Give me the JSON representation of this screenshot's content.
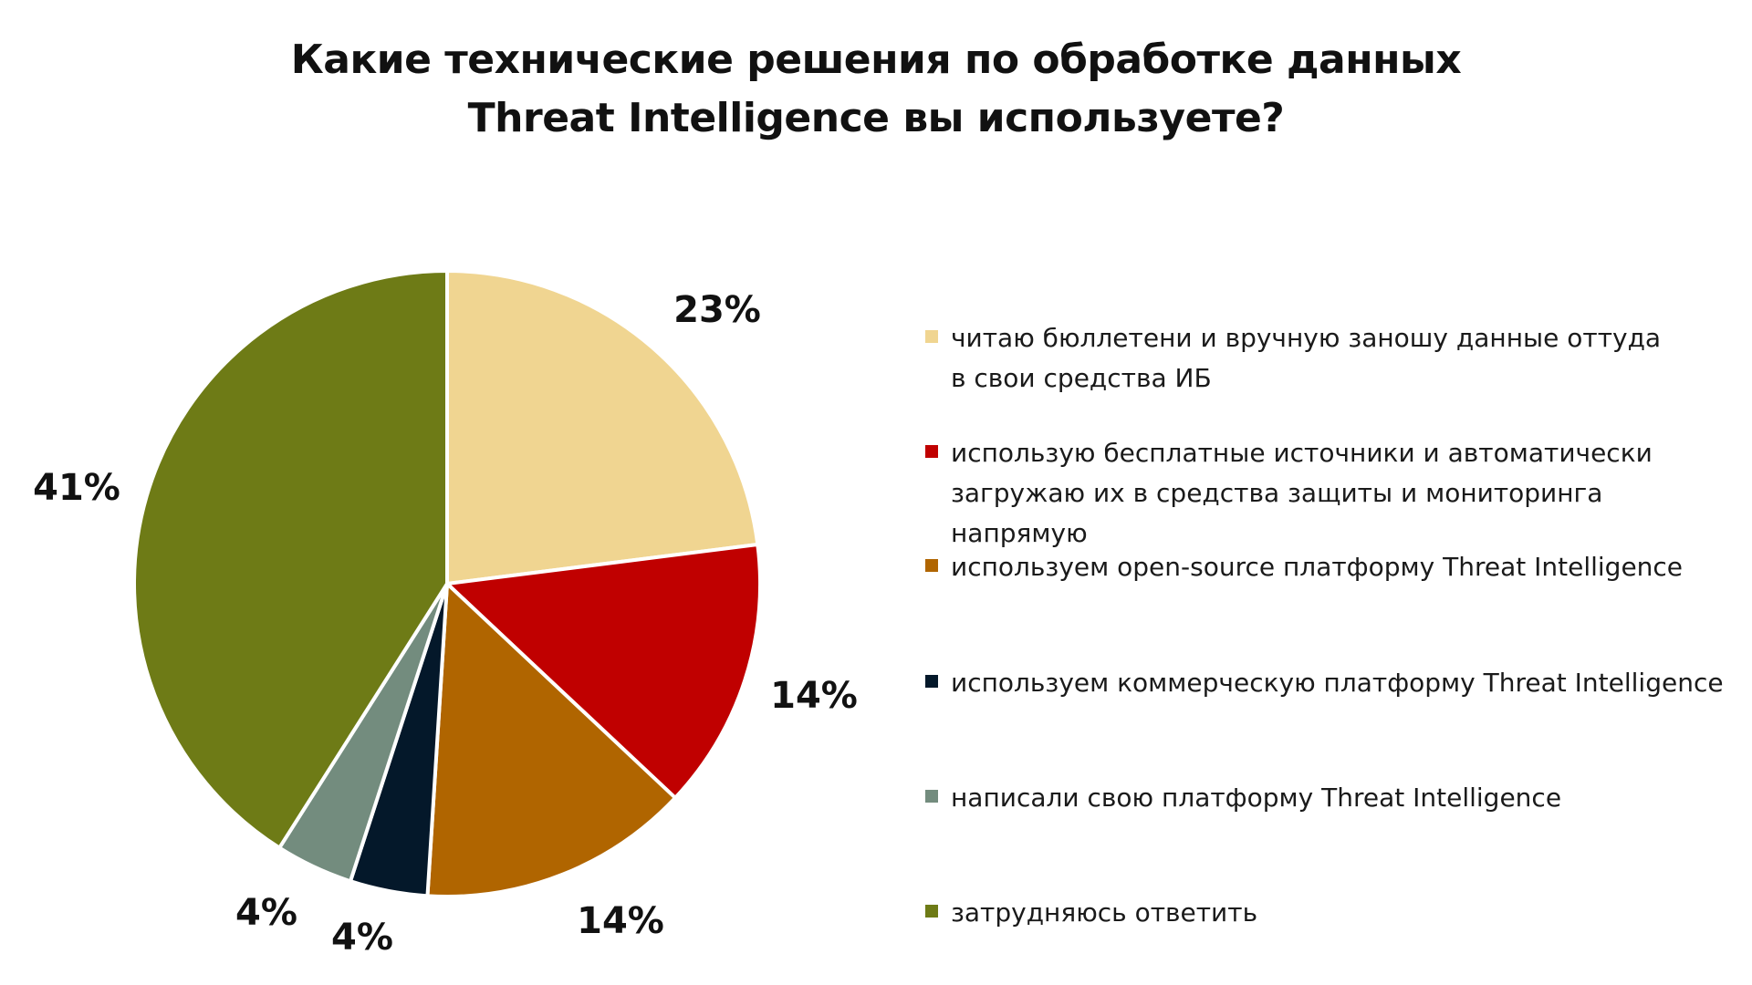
{
  "title_lines": [
    "Какие технические решения по обработке данных",
    "Threat Intelligence вы используете?"
  ],
  "chart_data": {
    "type": "pie",
    "title": "Какие технические решения по обработке данных Threat Intelligence вы используете?",
    "categories": [
      "читаю бюллетени и вручную заношу данные оттуда в свои средства ИБ",
      "использую бесплатные источники и автоматически загружаю их в средства защиты и мониторинга напрямую",
      "используем open-source платформу Threat Intelligence",
      "используем коммерческую платформу Threat Intelligence",
      "написали свою платформу Threat Intelligence",
      "затрудняюсь ответить"
    ],
    "values": [
      23,
      14,
      14,
      4,
      4,
      41
    ],
    "labels": [
      "23%",
      "14%",
      "14%",
      "4%",
      "4%",
      "41%"
    ],
    "colors": [
      "#F0D591",
      "#C00000",
      "#B06500",
      "#04182A",
      "#738C7E",
      "#6E7B16"
    ],
    "legend_placement": "right",
    "start_angle": "12 o'clock",
    "direction": "clockwise"
  },
  "legend": {
    "items": [
      {
        "text": "читаю бюллетени и вручную заношу данные оттуда\nв свои средства ИБ",
        "color": "#F0D591"
      },
      {
        "text": "использую бесплатные источники и автоматически\nзагружаю их в средства защиты и мониторинга напрямую",
        "color": "#C00000"
      },
      {
        "text": "используем open-source платформу Threat Intelligence",
        "color": "#B06500"
      },
      {
        "text": "используем коммерческую платформу Threat Intelligence",
        "color": "#04182A"
      },
      {
        "text": "написали свою платформу Threat Intelligence",
        "color": "#738C7E"
      },
      {
        "text": "затрудняюсь ответить",
        "color": "#6E7B16"
      }
    ]
  }
}
